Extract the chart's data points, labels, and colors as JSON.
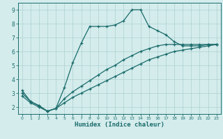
{
  "title": "",
  "xlabel": "Humidex (Indice chaleur)",
  "xlim": [
    -0.5,
    23.5
  ],
  "ylim": [
    1.5,
    9.5
  ],
  "xticks": [
    0,
    1,
    2,
    3,
    4,
    5,
    6,
    7,
    8,
    9,
    10,
    11,
    12,
    13,
    14,
    15,
    16,
    17,
    18,
    19,
    20,
    21,
    22,
    23
  ],
  "yticks": [
    2,
    3,
    4,
    5,
    6,
    7,
    8,
    9
  ],
  "background_color": "#d4ecec",
  "grid_color": "#aed0d0",
  "line_color": "#1a6b6b",
  "line1_x": [
    0,
    1,
    2,
    3,
    4,
    5,
    6,
    7,
    8,
    9,
    10,
    11,
    12,
    13,
    14,
    15,
    16,
    17,
    18,
    19,
    20,
    21,
    22,
    23
  ],
  "line1_y": [
    3.2,
    2.4,
    2.1,
    1.7,
    1.9,
    3.4,
    5.2,
    6.6,
    7.8,
    7.8,
    7.8,
    7.9,
    8.2,
    9.0,
    9.0,
    7.8,
    7.5,
    7.2,
    6.7,
    6.4,
    6.4,
    6.4,
    6.5,
    6.5
  ],
  "line2_x": [
    0,
    1,
    2,
    3,
    4,
    5,
    6,
    7,
    8,
    9,
    10,
    11,
    12,
    13,
    14,
    15,
    16,
    17,
    18,
    19,
    20,
    21,
    22,
    23
  ],
  "line2_y": [
    3.0,
    2.4,
    2.1,
    1.7,
    1.9,
    2.6,
    3.1,
    3.5,
    3.9,
    4.3,
    4.7,
    5.0,
    5.4,
    5.7,
    6.0,
    6.2,
    6.4,
    6.5,
    6.5,
    6.5,
    6.5,
    6.5,
    6.5,
    6.5
  ],
  "line3_x": [
    0,
    1,
    2,
    3,
    4,
    5,
    6,
    7,
    8,
    9,
    10,
    11,
    12,
    13,
    14,
    15,
    16,
    17,
    18,
    19,
    20,
    21,
    22,
    23
  ],
  "line3_y": [
    2.8,
    2.3,
    2.0,
    1.7,
    1.9,
    2.3,
    2.7,
    3.0,
    3.3,
    3.6,
    3.9,
    4.2,
    4.5,
    4.8,
    5.1,
    5.4,
    5.6,
    5.8,
    6.0,
    6.1,
    6.2,
    6.3,
    6.4,
    6.5
  ]
}
